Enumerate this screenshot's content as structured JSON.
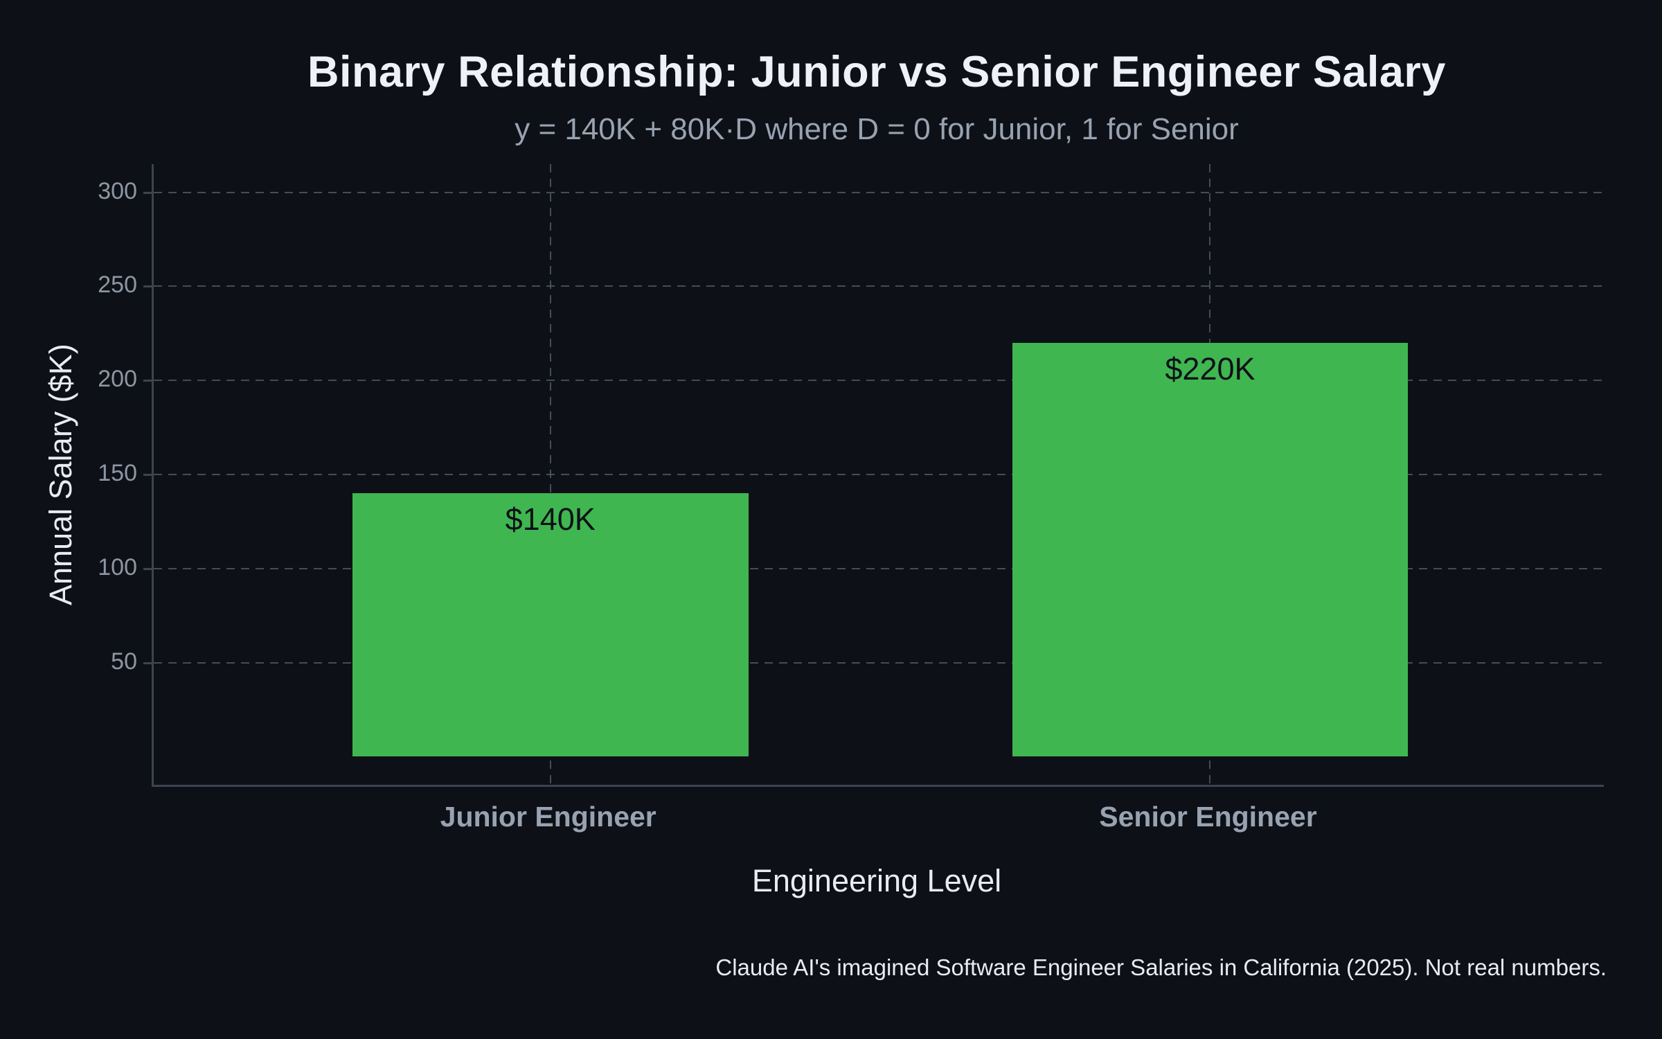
{
  "chart_data": {
    "type": "bar",
    "title": "Binary Relationship: Junior vs Senior Engineer Salary",
    "subtitle": "y = 140K + 80K·D where D = 0 for Junior, 1 for Senior",
    "categories": [
      "Junior Engineer",
      "Senior Engineer"
    ],
    "values": [
      140,
      220
    ],
    "bar_labels": [
      "$140K",
      "$220K"
    ],
    "xlabel": "Engineering Level",
    "ylabel": "Annual Salary ($K)",
    "yticks": [
      50,
      100,
      150,
      200,
      250,
      300
    ],
    "ylim": [
      -15,
      315
    ],
    "grid": "dashed horizontal lines at y ticks and dashed vertical lines at category centers",
    "legend": "none",
    "colors": {
      "background": "#0d1117",
      "bar": "#40b651",
      "bar_label_text": "#0d1117",
      "axis_line": "#3d4450",
      "gridline": "#505762",
      "title_text": "#eef2f7",
      "subtitle_text": "#99a2b1",
      "tick_text": "#8e96a4"
    }
  },
  "footer": {
    "caption": "Claude AI's imagined Software Engineer Salaries in California (2025). Not real numbers."
  }
}
